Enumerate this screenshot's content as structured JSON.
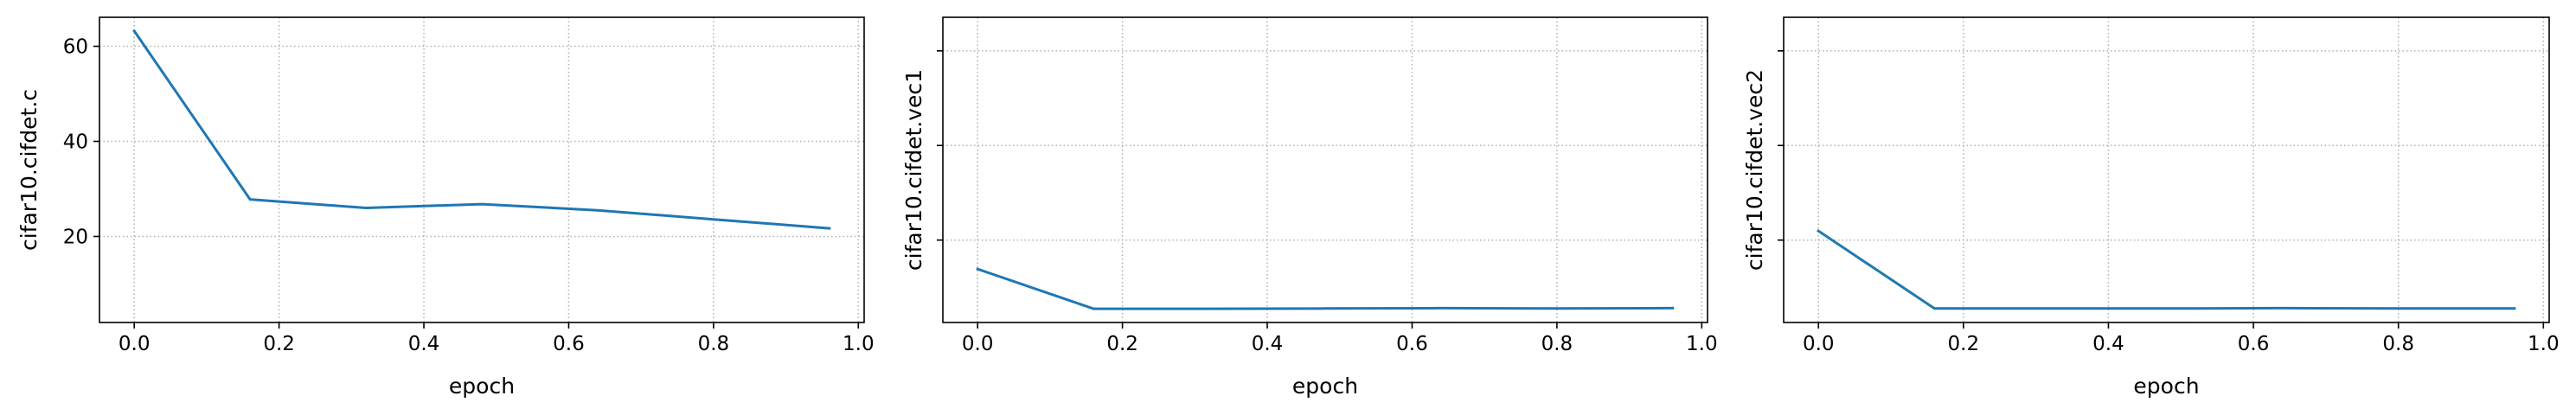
{
  "chart_data": [
    {
      "type": "line",
      "xlabel": "epoch",
      "ylabel": "cifar10.cifdet.c",
      "xlim": [
        -0.048,
        1.008
      ],
      "ylim": [
        1.9,
        66.1
      ],
      "xticks": [
        0.0,
        0.2,
        0.4,
        0.6,
        0.8,
        1.0
      ],
      "xtick_labels": [
        "0.0",
        "0.2",
        "0.4",
        "0.6",
        "0.8",
        "1.0"
      ],
      "yticks": [
        20,
        40,
        60
      ],
      "ytick_labels": [
        "20",
        "40",
        "60"
      ],
      "grid": true,
      "grid_style": "dotted",
      "line_color": "#1f77b4",
      "series": [
        {
          "x": [
            0.0,
            0.16,
            0.32,
            0.48,
            0.64,
            0.8,
            0.96
          ],
          "y": [
            63.2,
            27.8,
            26.0,
            26.8,
            25.5,
            23.6,
            21.7
          ]
        }
      ]
    },
    {
      "type": "line",
      "xlabel": "epoch",
      "ylabel": "cifar10.cifdet.vec1",
      "xlim": [
        -0.048,
        1.008
      ],
      "ylim": [
        0,
        100
      ],
      "xticks": [
        0.0,
        0.2,
        0.4,
        0.6,
        0.8,
        1.0
      ],
      "xtick_labels": [
        "0.0",
        "0.2",
        "0.4",
        "0.6",
        "0.8",
        "1.0"
      ],
      "yticks": [
        27,
        58,
        89
      ],
      "ytick_labels": [
        "",
        "",
        ""
      ],
      "grid": true,
      "grid_style": "dotted",
      "line_color": "#1f77b4",
      "series": [
        {
          "x": [
            0.0,
            0.16,
            0.32,
            0.48,
            0.64,
            0.8,
            0.96
          ],
          "y": [
            17.5,
            4.5,
            4.5,
            4.6,
            4.7,
            4.6,
            4.7
          ]
        }
      ]
    },
    {
      "type": "line",
      "xlabel": "epoch",
      "ylabel": "cifar10.cifdet.vec2",
      "xlim": [
        -0.048,
        1.008
      ],
      "ylim": [
        0,
        100
      ],
      "xticks": [
        0.0,
        0.2,
        0.4,
        0.6,
        0.8,
        1.0
      ],
      "xtick_labels": [
        "0.0",
        "0.2",
        "0.4",
        "0.6",
        "0.8",
        "1.0"
      ],
      "yticks": [
        27,
        58,
        89
      ],
      "ytick_labels": [
        "",
        "",
        ""
      ],
      "grid": true,
      "grid_style": "dotted",
      "line_color": "#1f77b4",
      "series": [
        {
          "x": [
            0.0,
            0.16,
            0.32,
            0.48,
            0.64,
            0.8,
            0.96
          ],
          "y": [
            30.0,
            4.6,
            4.6,
            4.6,
            4.7,
            4.6,
            4.6
          ]
        }
      ]
    }
  ]
}
